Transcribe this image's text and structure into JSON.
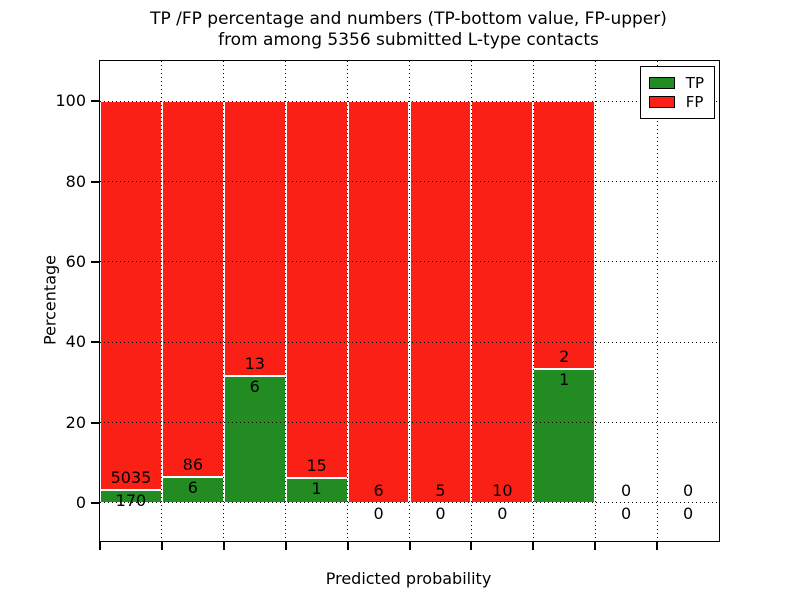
{
  "chart_data": {
    "type": "bar",
    "stacked": true,
    "title": "TP /FP percentage and numbers (TP-bottom value, FP-upper) from among 5356 submitted L-type contacts",
    "title_line1": "TP /FP percentage and numbers (TP-bottom value, FP-upper)",
    "title_line2": "from among 5356 submitted L-type contacts",
    "xlabel": "Predicted probability",
    "ylabel": "Percentage",
    "total_submitted": 5356,
    "xlim": [
      0.0,
      1.0
    ],
    "ylim": [
      -9.5,
      110
    ],
    "x_ticks": [
      "0.0",
      "0.1",
      "0.2",
      "0.3",
      "0.4",
      "0.5",
      "0.6",
      "0.7",
      "0.8",
      "0.9"
    ],
    "y_ticks": [
      0,
      20,
      40,
      60,
      80,
      100
    ],
    "grid": true,
    "grid_style": "dotted-black-over-bars",
    "bin_width": 0.1,
    "legend_position": "upper right",
    "bar_edge_color": "#ffffff",
    "series": [
      {
        "name": "TP",
        "color": "#228b22"
      },
      {
        "name": "FP",
        "color": "#fb2015"
      }
    ],
    "bins": [
      {
        "x0": 0.0,
        "x1": 0.1,
        "tp": 170,
        "fp": 5035,
        "tp_pct": 3.3,
        "fp_pct": 96.7
      },
      {
        "x0": 0.1,
        "x1": 0.2,
        "tp": 6,
        "fp": 86,
        "tp_pct": 6.5,
        "fp_pct": 93.5
      },
      {
        "x0": 0.2,
        "x1": 0.3,
        "tp": 6,
        "fp": 13,
        "tp_pct": 31.6,
        "fp_pct": 68.4
      },
      {
        "x0": 0.3,
        "x1": 0.4,
        "tp": 1,
        "fp": 15,
        "tp_pct": 6.3,
        "fp_pct": 93.7
      },
      {
        "x0": 0.4,
        "x1": 0.5,
        "tp": 0,
        "fp": 6,
        "tp_pct": 0,
        "fp_pct": 100
      },
      {
        "x0": 0.5,
        "x1": 0.6,
        "tp": 0,
        "fp": 5,
        "tp_pct": 0,
        "fp_pct": 100
      },
      {
        "x0": 0.6,
        "x1": 0.7,
        "tp": 0,
        "fp": 10,
        "tp_pct": 0,
        "fp_pct": 100
      },
      {
        "x0": 0.7,
        "x1": 0.8,
        "tp": 1,
        "fp": 2,
        "tp_pct": 33.3,
        "fp_pct": 66.7
      },
      {
        "x0": 0.8,
        "x1": 0.9,
        "tp": 0,
        "fp": 0,
        "tp_pct": null,
        "fp_pct": null
      },
      {
        "x0": 0.9,
        "x1": 1.0,
        "tp": 0,
        "fp": 0,
        "tp_pct": null,
        "fp_pct": null
      }
    ]
  }
}
